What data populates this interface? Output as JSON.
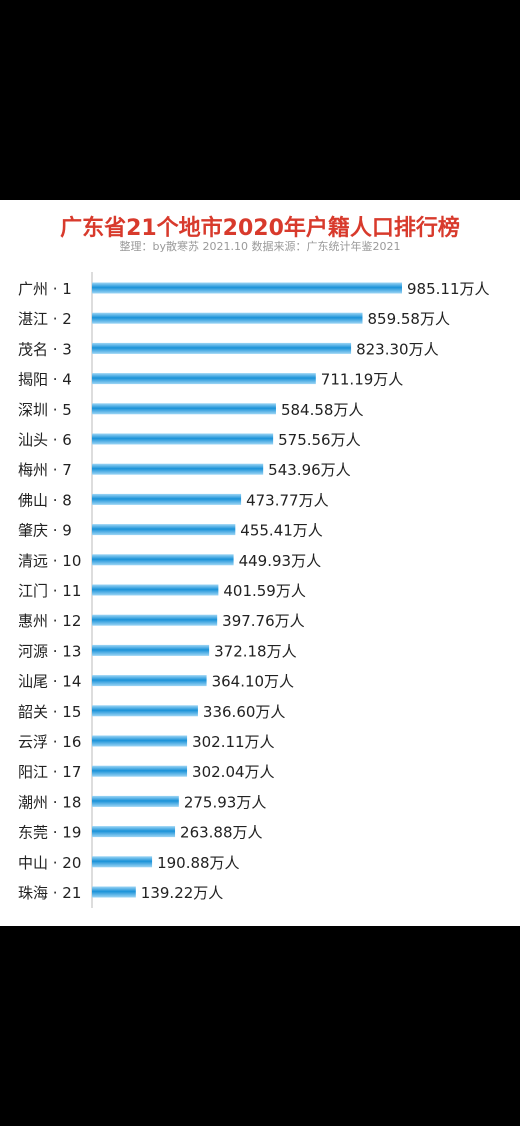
{
  "chart_data": {
    "type": "bar",
    "orientation": "horizontal",
    "title": "广东省21个地市2020年户籍人口排行榜",
    "subtitle": "整理：by散寒苏  2021.10  数据来源：广东统计年鉴2021",
    "value_suffix": "万人",
    "categories": [
      "广州 · 1",
      "湛江 · 2",
      "茂名 · 3",
      "揭阳 · 4",
      "深圳 · 5",
      "汕头 · 6",
      "梅州 · 7",
      "佛山 · 8",
      "肇庆 · 9",
      "清远 · 10",
      "江门 · 11",
      "惠州 · 12",
      "河源 · 13",
      "汕尾 · 14",
      "韶关 · 15",
      "云浮 · 16",
      "阳江 · 17",
      "潮州 · 18",
      "东莞 · 19",
      "中山 · 20",
      "珠海 · 21"
    ],
    "values": [
      985.11,
      859.58,
      823.3,
      711.19,
      584.58,
      575.56,
      543.96,
      473.77,
      455.41,
      449.93,
      401.59,
      397.76,
      372.18,
      364.1,
      336.6,
      302.11,
      302.04,
      275.93,
      263.88,
      190.88,
      139.22
    ],
    "value_labels": [
      "985.11万人",
      "859.58万人",
      "823.30万人",
      "711.19万人",
      "584.58万人",
      "575.56万人",
      "543.96万人",
      "473.77万人",
      "455.41万人",
      "449.93万人",
      "401.59万人",
      "397.76万人",
      "372.18万人",
      "364.10万人",
      "336.60万人",
      "302.11万人",
      "302.04万人",
      "275.93万人",
      "263.88万人",
      "190.88万人",
      "139.22万人"
    ],
    "xlim": [
      0,
      1000
    ],
    "grid": false,
    "legend": "none",
    "colors": {
      "bar_light": "#9ed6f5",
      "bar_dark": "#1a92d8",
      "title": "#d83a2c",
      "label": "#222222",
      "axis_line": "#bbbbbb"
    }
  }
}
